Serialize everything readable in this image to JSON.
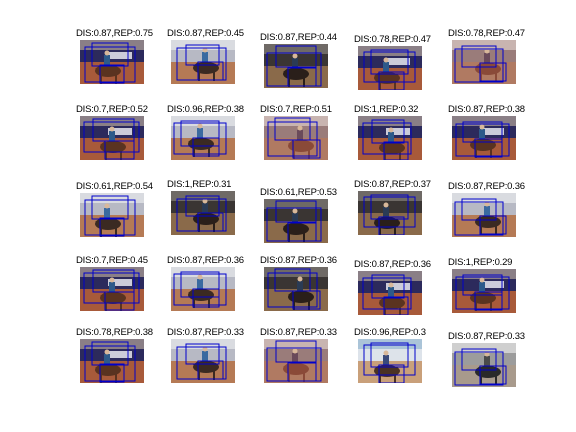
{
  "figure": {
    "accent_box_color": "#0000cc",
    "rows": [
      [
        {
          "label": "DIS:0.87,REP:0.75",
          "scene": "arena-banner"
        },
        {
          "label": "DIS:0.87,REP:0.45",
          "scene": "arena-light"
        },
        {
          "label": "DIS:0.87,REP:0.44",
          "scene": "arena-dark"
        },
        {
          "label": "DIS:0.78,REP:0.47",
          "scene": "arena-banner"
        },
        {
          "label": "DIS:0.78,REP:0.47",
          "scene": "arena-pink"
        }
      ],
      [
        {
          "label": "DIS:0.7,REP:0.52",
          "scene": "arena-banner"
        },
        {
          "label": "DIS:0.96,REP:0.38",
          "scene": "arena-light"
        },
        {
          "label": "DIS:0.7,REP:0.51",
          "scene": "arena-pink"
        },
        {
          "label": "DIS:1,REP:0.32",
          "scene": "arena-banner"
        },
        {
          "label": "DIS:0.87,REP:0.38",
          "scene": "arena-banner"
        }
      ],
      [
        {
          "label": "DIS:0.61,REP:0.54",
          "scene": "arena-light"
        },
        {
          "label": "DIS:1,REP:0.31",
          "scene": "arena-dark"
        },
        {
          "label": "DIS:0.61,REP:0.53",
          "scene": "arena-dark"
        },
        {
          "label": "DIS:0.87,REP:0.37",
          "scene": "arena-dark"
        },
        {
          "label": "DIS:0.87,REP:0.36",
          "scene": "arena-light"
        }
      ],
      [
        {
          "label": "DIS:0.7,REP:0.45",
          "scene": "arena-banner"
        },
        {
          "label": "DIS:0.87,REP:0.36",
          "scene": "arena-light"
        },
        {
          "label": "DIS:0.87,REP:0.36",
          "scene": "arena-dark"
        },
        {
          "label": "DIS:0.87,REP:0.36",
          "scene": "arena-banner"
        },
        {
          "label": "DIS:1,REP:0.29",
          "scene": "arena-banner"
        }
      ],
      [
        {
          "label": "DIS:0.78,REP:0.38",
          "scene": "arena-banner"
        },
        {
          "label": "DIS:0.87,REP:0.33",
          "scene": "arena-light"
        },
        {
          "label": "DIS:0.87,REP:0.33",
          "scene": "arena-pink"
        },
        {
          "label": "DIS:0.96,REP:0.3",
          "scene": "arena-sky"
        },
        {
          "label": "DIS:0.87,REP:0.33",
          "scene": "arena-gray"
        }
      ]
    ]
  }
}
